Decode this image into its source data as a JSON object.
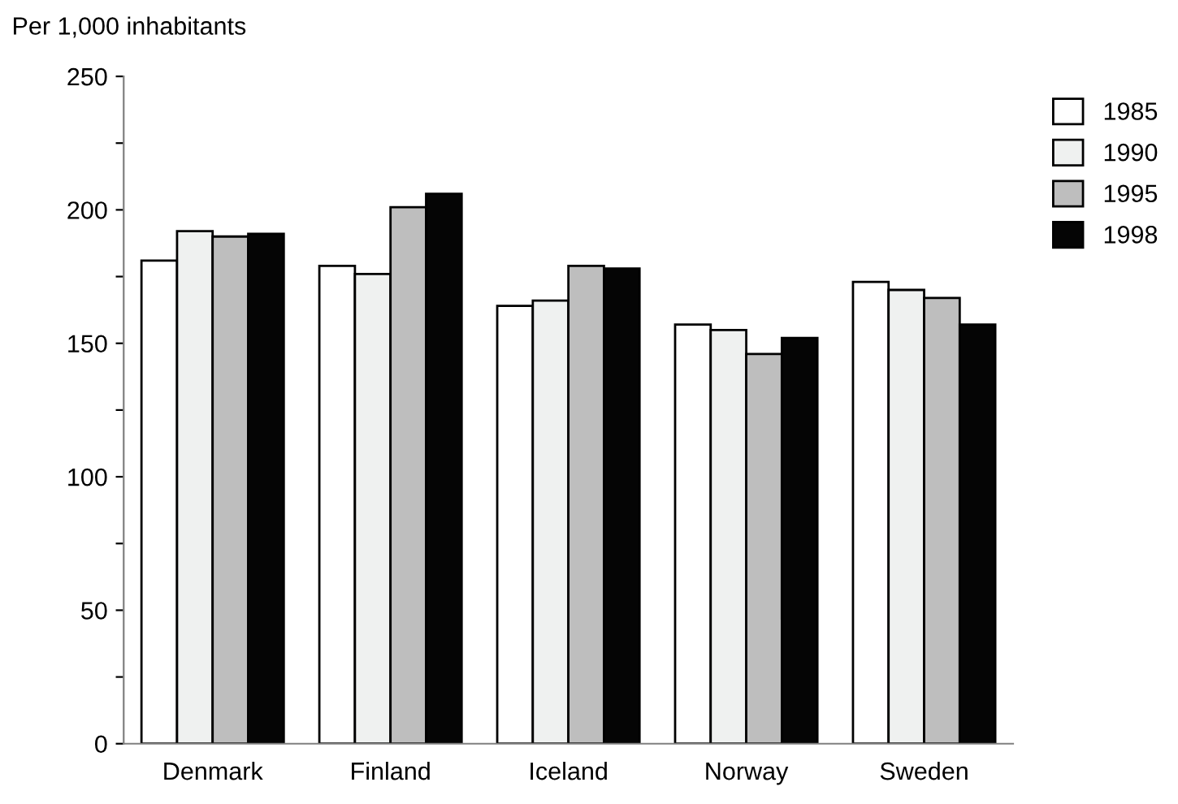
{
  "chart_data": {
    "type": "bar",
    "ylabel": "Per 1,000 inhabitants",
    "categories": [
      "Denmark",
      "Finland",
      "Iceland",
      "Norway",
      "Sweden"
    ],
    "series": [
      {
        "name": "1985",
        "color": "#ffffff",
        "values": [
          181,
          179,
          164,
          157,
          173
        ]
      },
      {
        "name": "1990",
        "color": "#eff1f0",
        "values": [
          192,
          176,
          166,
          155,
          170
        ]
      },
      {
        "name": "1995",
        "color": "#bebebe",
        "values": [
          190,
          201,
          179,
          146,
          167
        ]
      },
      {
        "name": "1998",
        "color": "#050505",
        "values": [
          191,
          206,
          178,
          152,
          157
        ]
      }
    ],
    "ylim": [
      0,
      250
    ],
    "yticks": [
      0,
      {
        "value": 25,
        "label": null
      },
      50,
      {
        "value": 75,
        "label": null
      },
      100,
      {
        "value": 125,
        "label": null
      },
      150,
      {
        "value": 175,
        "label": null
      },
      200,
      {
        "value": 225,
        "label": null
      },
      250
    ],
    "grid": false,
    "legend": "top right"
  }
}
